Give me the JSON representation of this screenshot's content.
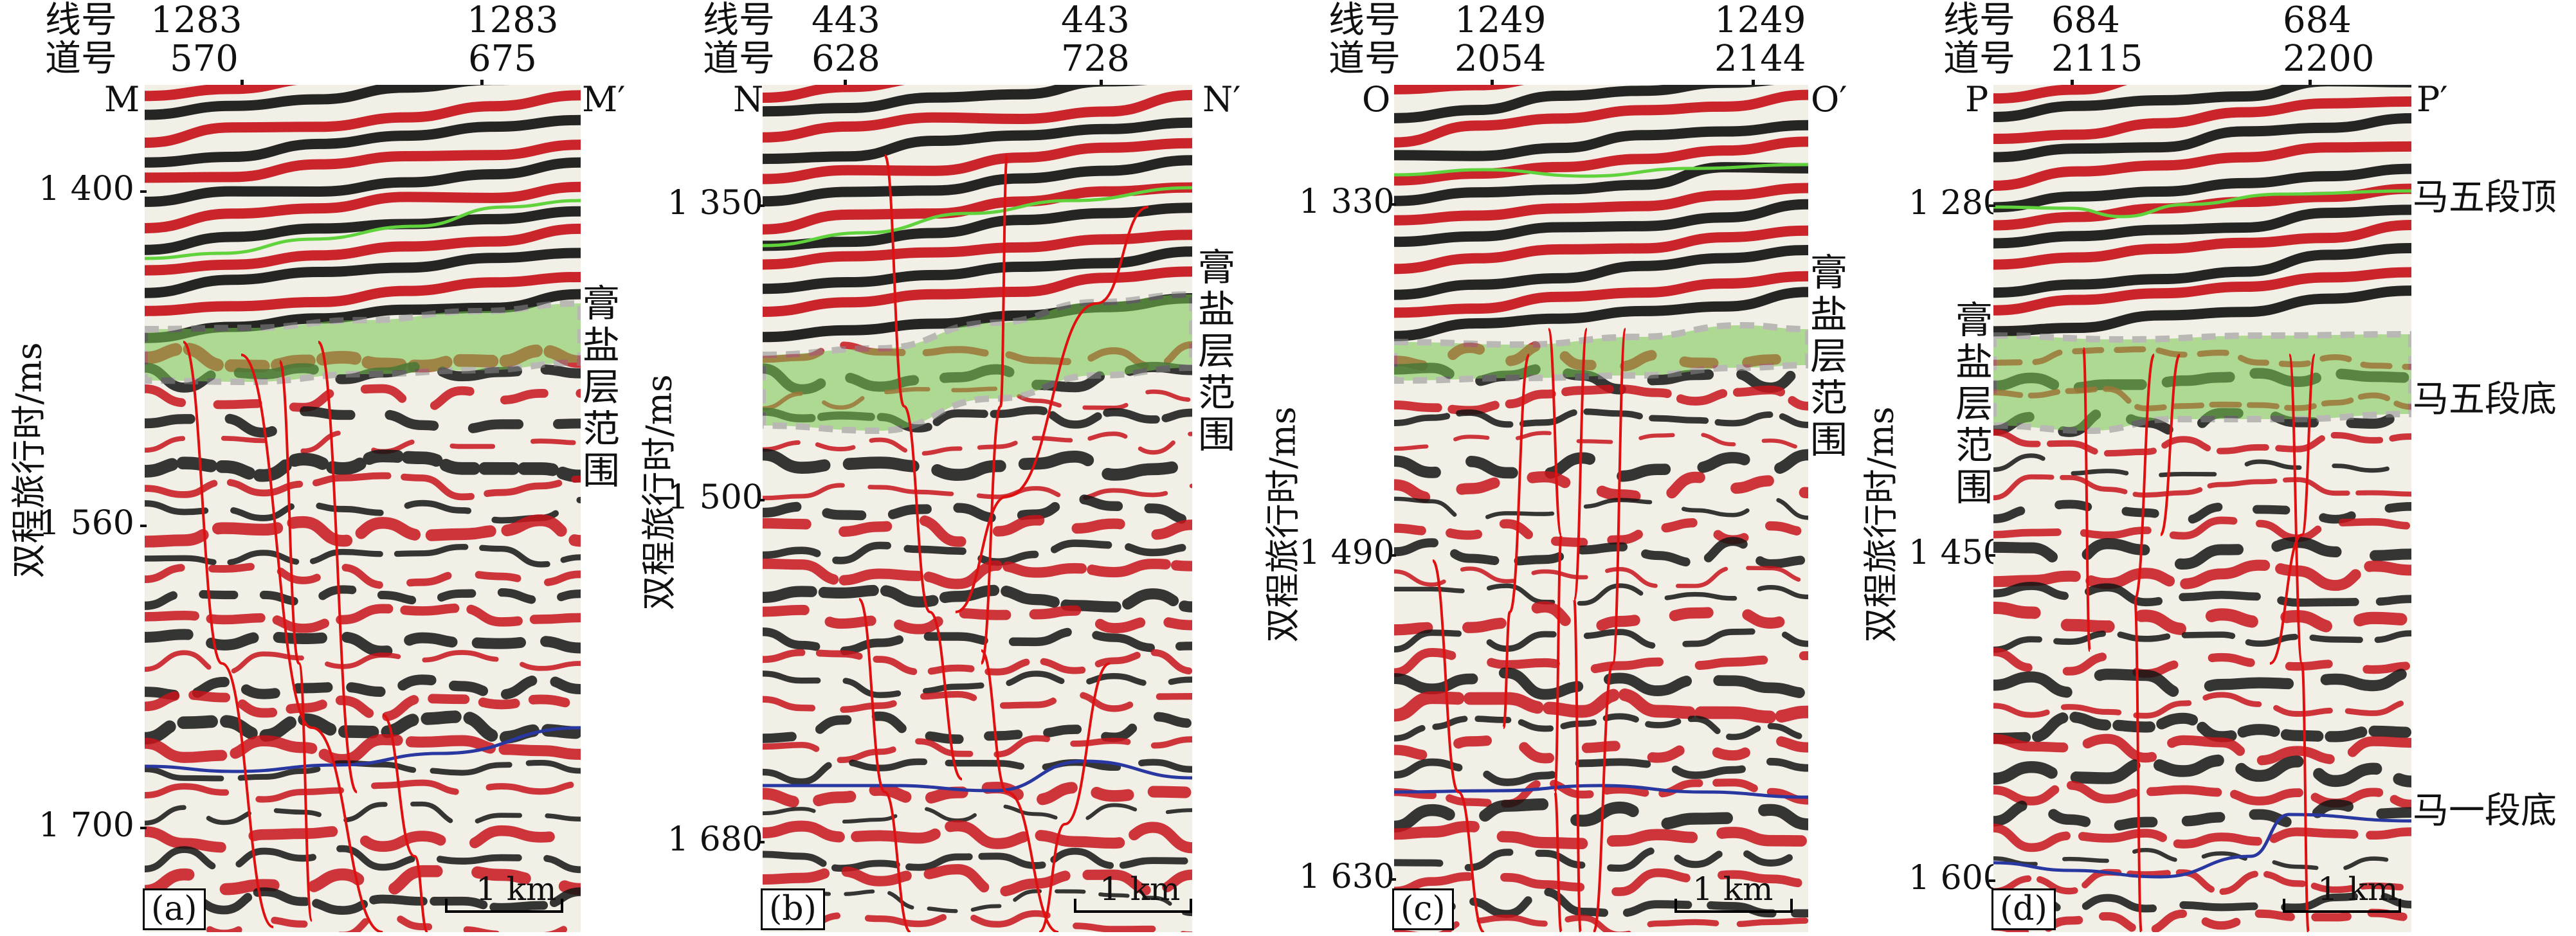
{
  "header_labels": {
    "line": "线号",
    "trace": "道号"
  },
  "axis_label": "双程旅行时/ms",
  "scale_label": "1 km",
  "panels": [
    {
      "id": "a",
      "label": "(a)",
      "line_left": "1283",
      "line_right": "1283",
      "trace_left": "570",
      "trace_right": "675",
      "left_end": "M",
      "right_end": "M′",
      "ticks": [
        "1 400",
        "1 560",
        "1 700"
      ],
      "side_note": [
        "膏",
        "盐",
        "层",
        "范",
        "围"
      ]
    },
    {
      "id": "b",
      "label": "(b)",
      "line_left": "443",
      "line_right": "443",
      "trace_left": "628",
      "trace_right": "728",
      "left_end": "N",
      "right_end": "N′",
      "ticks": [
        "1 350",
        "1 500",
        "1 680"
      ],
      "side_note": [
        "膏",
        "盐",
        "层",
        "范",
        "围"
      ]
    },
    {
      "id": "c",
      "label": "(c)",
      "line_left": "1249",
      "line_right": "1249",
      "trace_left": "2054",
      "trace_right": "2144",
      "left_end": "O",
      "right_end": "O′",
      "ticks": [
        "1 330",
        "1 490",
        "1 630"
      ],
      "side_note": [
        "膏",
        "盐",
        "层",
        "范",
        "围"
      ]
    },
    {
      "id": "d",
      "label": "(d)",
      "line_left": "684",
      "line_right": "684",
      "trace_left": "2115",
      "trace_right": "2200",
      "left_end": "P",
      "right_end": "P′",
      "ticks": [
        "1 280",
        "1 450",
        "1 600"
      ],
      "side_note": [
        "膏",
        "盐",
        "层",
        "范",
        "围"
      ],
      "horizon_labels": {
        "top": "马五段顶",
        "bottom": "马五段底",
        "deep": "马一段底"
      }
    }
  ],
  "colors": {
    "trough_red": "#c8141c",
    "peak_black": "#141414",
    "salt_green": "#78c850",
    "top_horizon": "#5fd23c",
    "deep_horizon": "#2838a0",
    "fault": "#e01010",
    "dashed_outline": "#8c8c8c"
  }
}
